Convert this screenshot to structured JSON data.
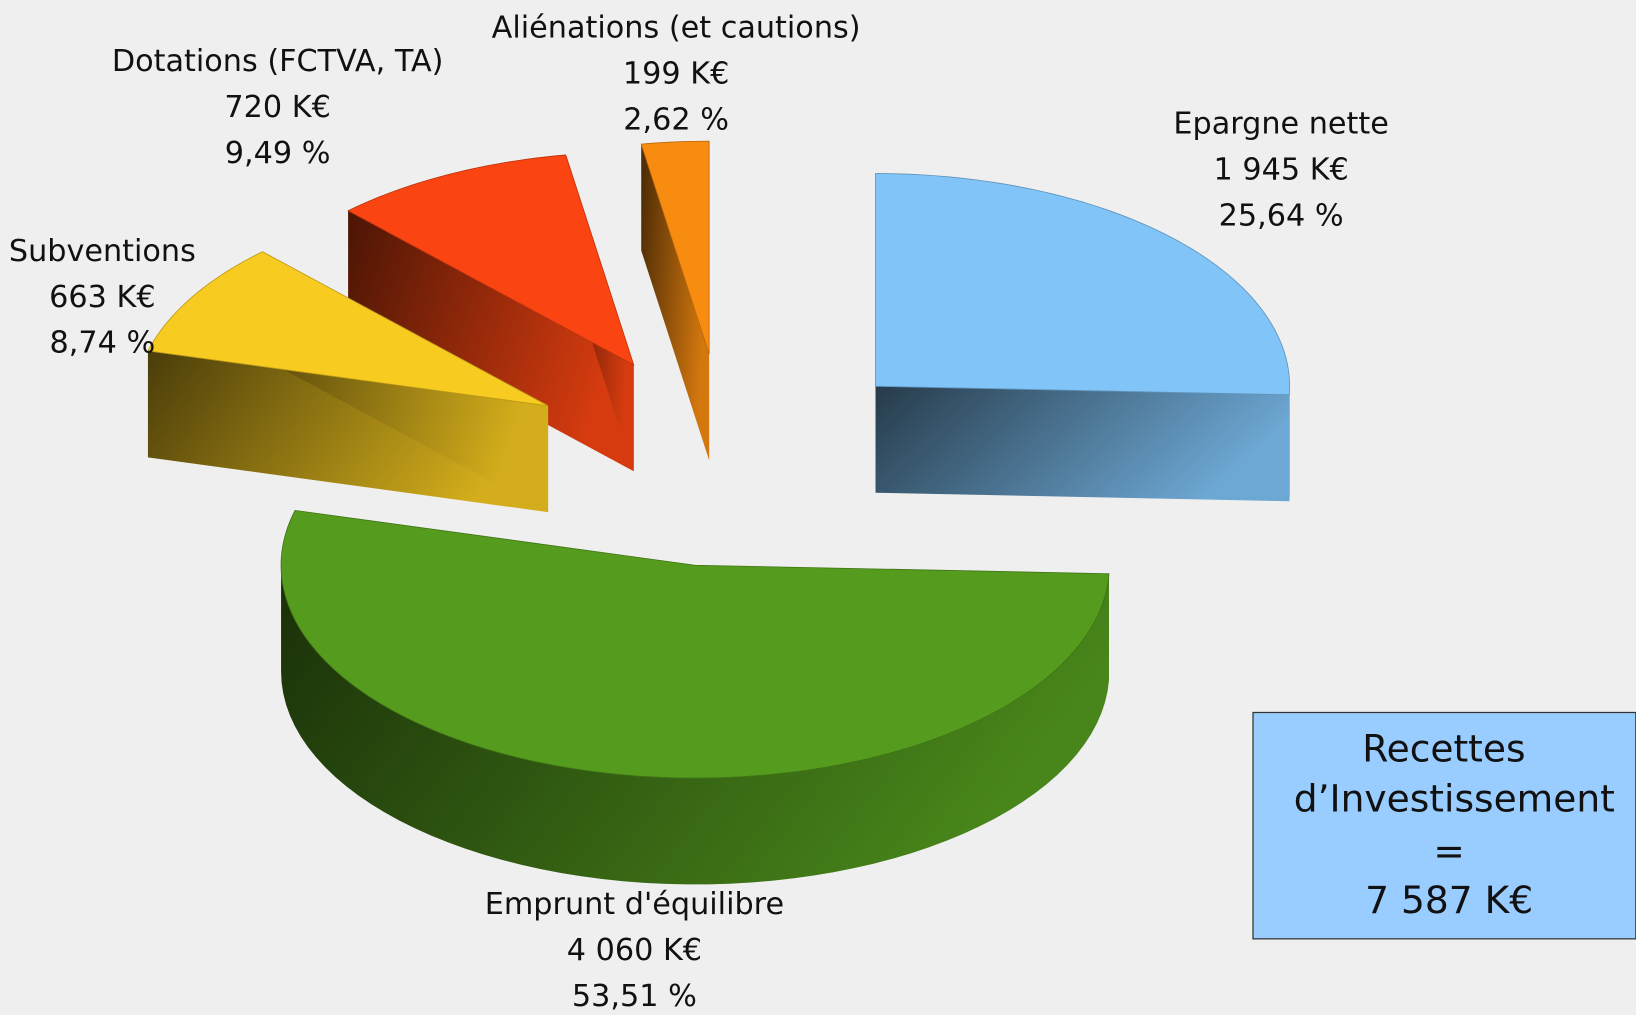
{
  "chart_data": {
    "type": "pie3d",
    "categories": [
      "Epargne nette",
      "Emprunt d'équilibre",
      "Subventions",
      "Dotations (FCTVA, TA)",
      "Aliénations (et cautions)"
    ],
    "values": [
      1945,
      4060,
      663,
      720,
      199
    ],
    "value_labels": [
      "1 945 K€",
      "4 060 K€",
      "663 K€",
      "720 K€",
      "199 K€"
    ],
    "percents": [
      25.64,
      53.51,
      8.74,
      9.49,
      2.62
    ],
    "percent_labels": [
      "25,64 %",
      "53,51 %",
      "8,74 %",
      "9,49 %",
      "2,62 %"
    ],
    "colors": [
      "#80c4f8",
      "#559c1e",
      "#f8cb20",
      "#fa4512",
      "#f88c10"
    ],
    "exploded": true,
    "total_box": {
      "lines": [
        "Recettes",
        "d’Investissement",
        "=",
        "7 587 K€"
      ]
    }
  }
}
